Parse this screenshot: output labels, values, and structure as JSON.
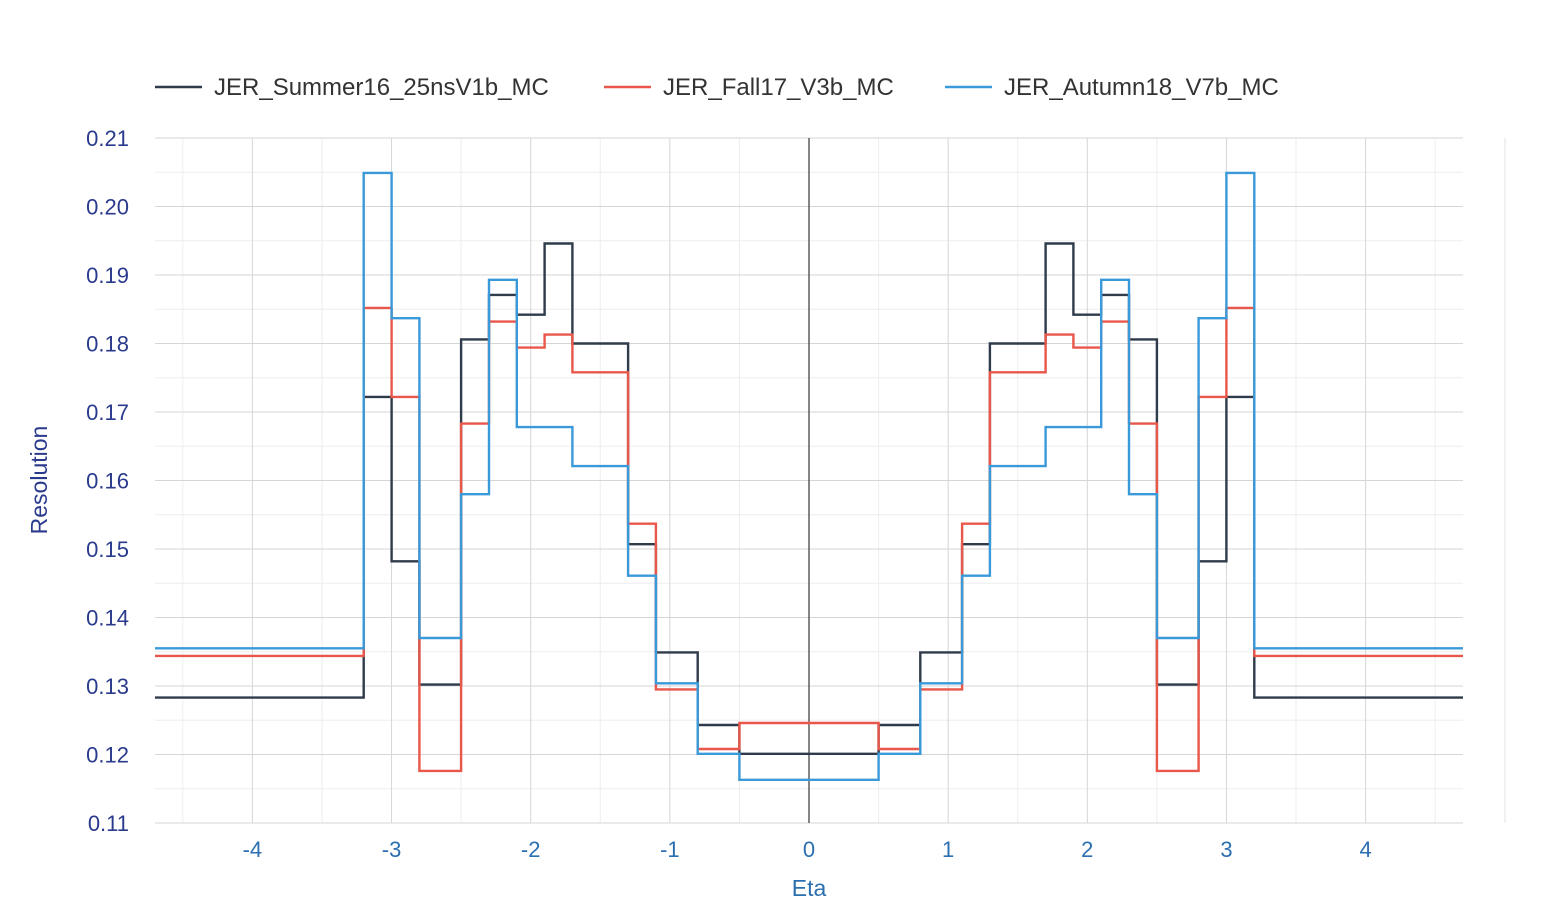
{
  "chart_data": {
    "type": "line",
    "step": true,
    "xlabel": "Eta",
    "ylabel": "Resolution",
    "xlim": [
      -4.7,
      4.7
    ],
    "ylim": [
      0.11,
      0.21
    ],
    "xticks": [
      "-4",
      "-3",
      "-2",
      "-1",
      "0",
      "1",
      "2",
      "3",
      "4"
    ],
    "yticks": [
      "0.11",
      "0.12",
      "0.13",
      "0.14",
      "0.15",
      "0.16",
      "0.17",
      "0.18",
      "0.19",
      "0.20",
      "0.21"
    ],
    "grid": true,
    "legend_position": "top",
    "bin_edges": [
      -4.7,
      -3.2,
      -3.0,
      -2.8,
      -2.5,
      -2.3,
      -2.1,
      -1.9,
      -1.7,
      -1.3,
      -1.1,
      -0.8,
      -0.5,
      0.5,
      0.8,
      1.1,
      1.3,
      1.7,
      1.9,
      2.1,
      2.3,
      2.5,
      2.8,
      3.0,
      3.2,
      4.7
    ],
    "series": [
      {
        "name": "JER_Summer16_25nsV1b_MC",
        "color": "#2f3b4a",
        "values": [
          0.1283,
          0.1722,
          0.1482,
          0.1302,
          0.1806,
          0.1871,
          0.1842,
          0.1946,
          0.18,
          0.1507,
          0.1349,
          0.1243,
          0.1201,
          0.1243,
          0.1349,
          0.1507,
          0.18,
          0.1946,
          0.1842,
          0.1871,
          0.1806,
          0.1302,
          0.1482,
          0.1722,
          0.1283
        ]
      },
      {
        "name": "JER_Fall17_V3b_MC",
        "color": "#e8574a",
        "values": [
          0.1344,
          0.1852,
          0.1722,
          0.1176,
          0.1683,
          0.1832,
          0.1794,
          0.1813,
          0.1758,
          0.1537,
          0.1295,
          0.1208,
          0.1246,
          0.1208,
          0.1295,
          0.1537,
          0.1758,
          0.1813,
          0.1794,
          0.1832,
          0.1683,
          0.1176,
          0.1722,
          0.1852,
          0.1344
        ]
      },
      {
        "name": "JER_Autumn18_V7b_MC",
        "color": "#3a9ad9",
        "values": [
          0.1355,
          0.2049,
          0.1837,
          0.137,
          0.158,
          0.1893,
          0.1678,
          0.1678,
          0.1621,
          0.1461,
          0.1304,
          0.1201,
          0.1163,
          0.1201,
          0.1304,
          0.1461,
          0.1621,
          0.1678,
          0.1678,
          0.1893,
          0.158,
          0.137,
          0.1837,
          0.2049,
          0.1355
        ]
      }
    ]
  }
}
